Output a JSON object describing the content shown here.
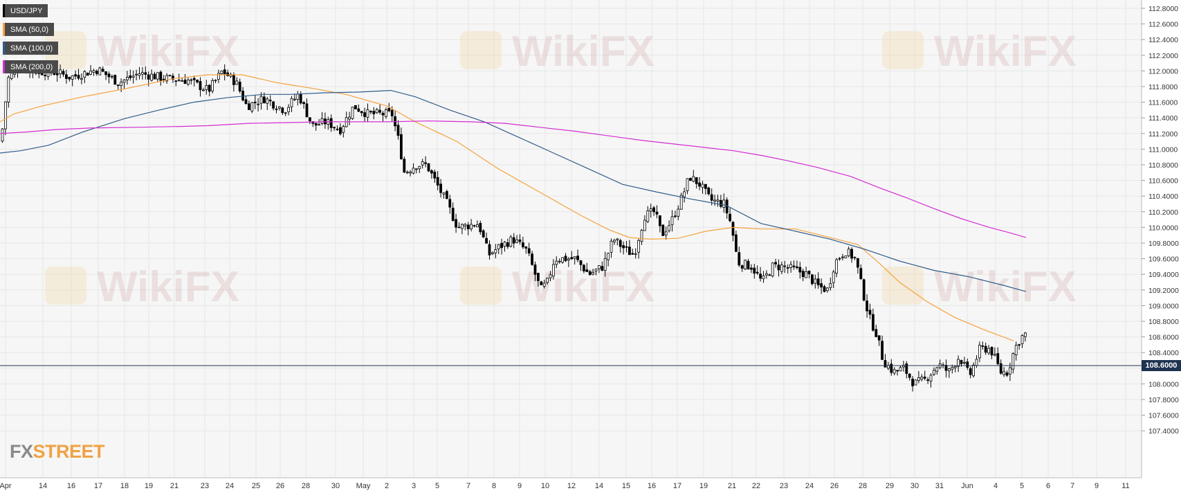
{
  "legend": [
    {
      "label": "USD/JPY",
      "color": "#000000"
    },
    {
      "label": "SMA (50,0)",
      "color": "#f5a23c"
    },
    {
      "label": "SMA (100,0)",
      "color": "#2f5d8a"
    },
    {
      "label": "SMA (200,0)",
      "color": "#d42bd4"
    }
  ],
  "logo": {
    "fx": "FX",
    "street": "STREET"
  },
  "watermark": "WikiFX",
  "current_price_label": "108.6000",
  "chart_data": {
    "type": "candlestick",
    "symbol": "USD/JPY",
    "ylim": [
      107.3,
      112.9
    ],
    "y_ticks": [
      "112.8000",
      "112.6000",
      "112.4000",
      "112.2000",
      "112.0000",
      "111.8000",
      "111.6000",
      "111.4000",
      "111.2000",
      "111.0000",
      "110.8000",
      "110.6000",
      "110.4000",
      "110.2000",
      "110.0000",
      "109.8000",
      "109.6000",
      "109.4000",
      "109.2000",
      "109.0000",
      "108.8000",
      "108.6000",
      "108.4000",
      "108.2000",
      "108.0000",
      "107.8000",
      "107.6000",
      "107.4000"
    ],
    "x_labels": [
      "Apr",
      "14",
      "16",
      "17",
      "18",
      "19",
      "21",
      "23",
      "24",
      "25",
      "26",
      "28",
      "30",
      "May",
      "2",
      "3",
      "5",
      "7",
      "8",
      "9",
      "10",
      "12",
      "14",
      "15",
      "16",
      "17",
      "19",
      "21",
      "22",
      "23",
      "24",
      "26",
      "28",
      "29",
      "30",
      "31",
      "Jun",
      "4",
      "5",
      "6",
      "7",
      "9",
      "11"
    ],
    "current_price": 108.6,
    "close_anchors": [
      [
        0,
        111.1
      ],
      [
        10,
        111.9
      ],
      [
        25,
        112.05
      ],
      [
        50,
        112.0
      ],
      [
        80,
        111.98
      ],
      [
        100,
        111.92
      ],
      [
        140,
        112.02
      ],
      [
        170,
        111.85
      ],
      [
        200,
        111.97
      ],
      [
        240,
        111.9
      ],
      [
        270,
        111.88
      ],
      [
        300,
        111.75
      ],
      [
        320,
        112.0
      ],
      [
        340,
        111.85
      ],
      [
        355,
        111.55
      ],
      [
        380,
        111.65
      ],
      [
        410,
        111.5
      ],
      [
        430,
        111.7
      ],
      [
        450,
        111.3
      ],
      [
        470,
        111.35
      ],
      [
        490,
        111.25
      ],
      [
        510,
        111.55
      ],
      [
        530,
        111.45
      ],
      [
        565,
        111.45
      ],
      [
        575,
        111.1
      ],
      [
        583,
        110.7
      ],
      [
        600,
        110.8
      ],
      [
        615,
        110.8
      ],
      [
        630,
        110.55
      ],
      [
        645,
        110.3
      ],
      [
        660,
        110.0
      ],
      [
        690,
        110.05
      ],
      [
        705,
        109.65
      ],
      [
        720,
        109.75
      ],
      [
        740,
        109.85
      ],
      [
        760,
        109.7
      ],
      [
        780,
        109.2
      ],
      [
        790,
        109.3
      ],
      [
        800,
        109.6
      ],
      [
        830,
        109.6
      ],
      [
        850,
        109.4
      ],
      [
        870,
        109.5
      ],
      [
        885,
        109.85
      ],
      [
        905,
        109.7
      ],
      [
        915,
        109.65
      ],
      [
        930,
        110.15
      ],
      [
        945,
        110.2
      ],
      [
        955,
        109.9
      ],
      [
        970,
        110.1
      ],
      [
        985,
        110.4
      ],
      [
        995,
        110.65
      ],
      [
        1010,
        110.55
      ],
      [
        1025,
        110.35
      ],
      [
        1045,
        110.3
      ],
      [
        1055,
        110.05
      ],
      [
        1065,
        109.55
      ],
      [
        1085,
        109.5
      ],
      [
        1100,
        109.3
      ],
      [
        1115,
        109.5
      ],
      [
        1130,
        109.5
      ],
      [
        1150,
        109.45
      ],
      [
        1165,
        109.4
      ],
      [
        1180,
        109.25
      ],
      [
        1195,
        109.2
      ],
      [
        1205,
        109.55
      ],
      [
        1220,
        109.7
      ],
      [
        1235,
        109.6
      ],
      [
        1245,
        109.2
      ],
      [
        1255,
        108.85
      ],
      [
        1265,
        108.65
      ],
      [
        1275,
        108.3
      ],
      [
        1290,
        108.15
      ],
      [
        1305,
        108.2
      ],
      [
        1320,
        108.0
      ],
      [
        1335,
        108.05
      ],
      [
        1355,
        108.25
      ],
      [
        1370,
        108.15
      ],
      [
        1385,
        108.35
      ],
      [
        1400,
        108.1
      ],
      [
        1415,
        108.45
      ],
      [
        1430,
        108.45
      ],
      [
        1445,
        108.15
      ],
      [
        1455,
        108.15
      ],
      [
        1465,
        108.45
      ],
      [
        1475,
        108.6
      ],
      [
        1483,
        108.65
      ]
    ],
    "series": [
      {
        "name": "SMA (50,0)",
        "color": "#f5a23c",
        "points": [
          [
            0,
            111.35
          ],
          [
            20,
            111.45
          ],
          [
            60,
            111.55
          ],
          [
            120,
            111.67
          ],
          [
            180,
            111.77
          ],
          [
            250,
            111.9
          ],
          [
            300,
            111.95
          ],
          [
            350,
            111.95
          ],
          [
            400,
            111.85
          ],
          [
            450,
            111.78
          ],
          [
            500,
            111.7
          ],
          [
            560,
            111.55
          ],
          [
            600,
            111.35
          ],
          [
            660,
            111.1
          ],
          [
            720,
            110.75
          ],
          [
            780,
            110.45
          ],
          [
            840,
            110.15
          ],
          [
            880,
            109.97
          ],
          [
            910,
            109.87
          ],
          [
            940,
            109.85
          ],
          [
            980,
            109.86
          ],
          [
            1020,
            109.95
          ],
          [
            1060,
            110.0
          ],
          [
            1100,
            109.98
          ],
          [
            1150,
            109.98
          ],
          [
            1200,
            109.87
          ],
          [
            1240,
            109.78
          ],
          [
            1270,
            109.55
          ],
          [
            1300,
            109.3
          ],
          [
            1340,
            109.05
          ],
          [
            1380,
            108.85
          ],
          [
            1420,
            108.7
          ],
          [
            1450,
            108.6
          ],
          [
            1465,
            108.55
          ]
        ]
      },
      {
        "name": "SMA (100,0)",
        "color": "#2f5d8a",
        "points": [
          [
            0,
            110.95
          ],
          [
            30,
            110.98
          ],
          [
            70,
            111.05
          ],
          [
            120,
            111.22
          ],
          [
            180,
            111.39
          ],
          [
            230,
            111.5
          ],
          [
            280,
            111.6
          ],
          [
            330,
            111.66
          ],
          [
            380,
            111.7
          ],
          [
            420,
            111.7
          ],
          [
            470,
            111.72
          ],
          [
            520,
            111.73
          ],
          [
            565,
            111.75
          ],
          [
            600,
            111.67
          ],
          [
            650,
            111.5
          ],
          [
            700,
            111.35
          ],
          [
            750,
            111.15
          ],
          [
            800,
            110.95
          ],
          [
            850,
            110.75
          ],
          [
            900,
            110.55
          ],
          [
            950,
            110.45
          ],
          [
            1000,
            110.36
          ],
          [
            1050,
            110.28
          ],
          [
            1100,
            110.05
          ],
          [
            1150,
            109.95
          ],
          [
            1200,
            109.85
          ],
          [
            1250,
            109.72
          ],
          [
            1300,
            109.57
          ],
          [
            1350,
            109.45
          ],
          [
            1400,
            109.37
          ],
          [
            1450,
            109.26
          ],
          [
            1483,
            109.18
          ]
        ]
      },
      {
        "name": "SMA (200,0)",
        "color": "#d42bd4",
        "points": [
          [
            0,
            111.2
          ],
          [
            40,
            111.22
          ],
          [
            80,
            111.25
          ],
          [
            130,
            111.27
          ],
          [
            200,
            111.28
          ],
          [
            260,
            111.29
          ],
          [
            300,
            111.3
          ],
          [
            360,
            111.33
          ],
          [
            420,
            111.34
          ],
          [
            470,
            111.35
          ],
          [
            520,
            111.35
          ],
          [
            560,
            111.35
          ],
          [
            620,
            111.36
          ],
          [
            680,
            111.35
          ],
          [
            730,
            111.33
          ],
          [
            780,
            111.28
          ],
          [
            830,
            111.23
          ],
          [
            880,
            111.17
          ],
          [
            930,
            111.11
          ],
          [
            980,
            111.06
          ],
          [
            1020,
            111.02
          ],
          [
            1060,
            110.98
          ],
          [
            1100,
            110.92
          ],
          [
            1140,
            110.85
          ],
          [
            1180,
            110.77
          ],
          [
            1230,
            110.65
          ],
          [
            1270,
            110.51
          ],
          [
            1310,
            110.38
          ],
          [
            1350,
            110.24
          ],
          [
            1390,
            110.11
          ],
          [
            1430,
            110.0
          ],
          [
            1460,
            109.93
          ],
          [
            1483,
            109.87
          ]
        ]
      }
    ]
  }
}
